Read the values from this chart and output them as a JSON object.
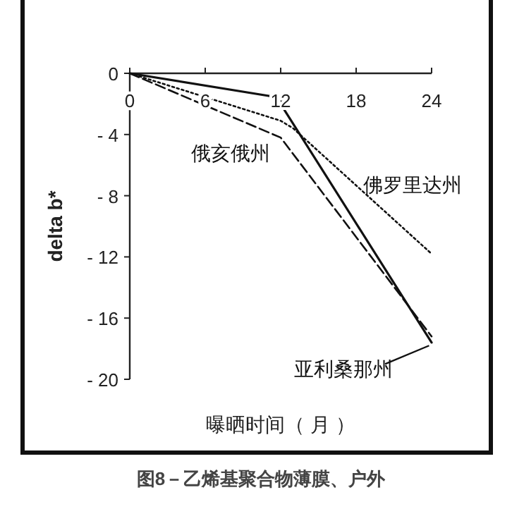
{
  "chart_data": {
    "type": "line",
    "title": "图8－乙烯基聚合物薄膜、户外",
    "xlabel": "曝晒时间（ 月 ）",
    "ylabel": "delta  b*",
    "xlim": [
      0,
      24
    ],
    "xticks": [
      0,
      6,
      12,
      18,
      24
    ],
    "ylim": [
      -20,
      0
    ],
    "yticks": [
      0,
      -4,
      -8,
      -12,
      -16,
      -20
    ],
    "grid": false,
    "series": [
      {
        "name": "亚利桑那州",
        "color": "#111111",
        "line_style": "solid",
        "x": [
          0,
          12,
          12.3,
          24
        ],
        "values": [
          0,
          -1.6,
          -2.4,
          -17.6
        ]
      },
      {
        "name": "佛罗里达州",
        "color": "#111111",
        "line_style": "dotted",
        "x": [
          0,
          12,
          13,
          24
        ],
        "values": [
          0,
          -3.1,
          -3.6,
          -11.8
        ]
      },
      {
        "name": "俄亥俄州",
        "color": "#111111",
        "line_style": "dashed",
        "x": [
          0,
          12,
          24
        ],
        "values": [
          0,
          -4.2,
          -17.2
        ]
      }
    ]
  }
}
